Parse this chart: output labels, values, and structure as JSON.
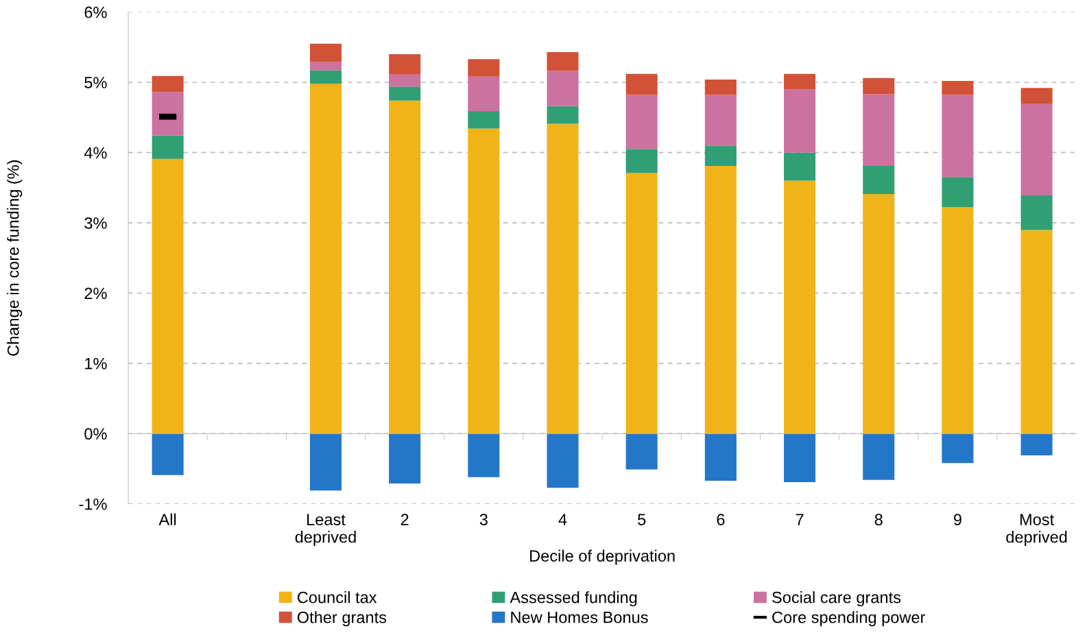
{
  "chart_data": {
    "type": "bar",
    "stacked": true,
    "xlabel": "Decile of deprivation",
    "ylabel": "Change in core funding (%)",
    "categories": [
      "All",
      null,
      "Least\ndeprived",
      "2",
      "3",
      "4",
      "5",
      "6",
      "7",
      "8",
      "9",
      "Most\ndeprived"
    ],
    "series": [
      {
        "name": "Council tax",
        "color": "#f0b419",
        "values": [
          3.91,
          null,
          4.98,
          4.74,
          4.34,
          4.41,
          3.71,
          3.81,
          3.6,
          3.41,
          3.22,
          2.9
        ]
      },
      {
        "name": "Assessed funding",
        "color": "#319f74",
        "values": [
          0.33,
          null,
          0.19,
          0.2,
          0.25,
          0.25,
          0.34,
          0.29,
          0.4,
          0.4,
          0.43,
          0.49
        ]
      },
      {
        "name": "Social care grants",
        "color": "#cc72a0",
        "values": [
          0.62,
          null,
          0.12,
          0.17,
          0.49,
          0.5,
          0.77,
          0.72,
          0.9,
          1.02,
          1.17,
          1.3
        ]
      },
      {
        "name": "Other grants",
        "color": "#d25237",
        "values": [
          0.23,
          null,
          0.26,
          0.29,
          0.25,
          0.27,
          0.3,
          0.22,
          0.22,
          0.23,
          0.2,
          0.23
        ]
      },
      {
        "name": "New Homes Bonus",
        "color": "#2477c8",
        "values": [
          -0.59,
          null,
          -0.81,
          -0.71,
          -0.62,
          -0.77,
          -0.51,
          -0.67,
          -0.69,
          -0.66,
          -0.42,
          -0.31
        ]
      },
      {
        "name": "Core spending power",
        "color": "#000000",
        "type": "scatter",
        "values": [
          4.51,
          null,
          null,
          null,
          null,
          null,
          null,
          null,
          null,
          null,
          null,
          null
        ]
      }
    ],
    "ylim": [
      -1,
      6
    ],
    "yticks": [
      {
        "value": -1,
        "label": "-1%"
      },
      {
        "value": 0,
        "label": "0%"
      },
      {
        "value": 1,
        "label": "1%"
      },
      {
        "value": 2,
        "label": "2%"
      },
      {
        "value": 3,
        "label": "3%"
      },
      {
        "value": 4,
        "label": "4%"
      },
      {
        "value": 5,
        "label": "5%"
      },
      {
        "value": 6,
        "label": "6%"
      }
    ],
    "grid": "y",
    "line_style": "dashed",
    "legend": "bottom"
  }
}
